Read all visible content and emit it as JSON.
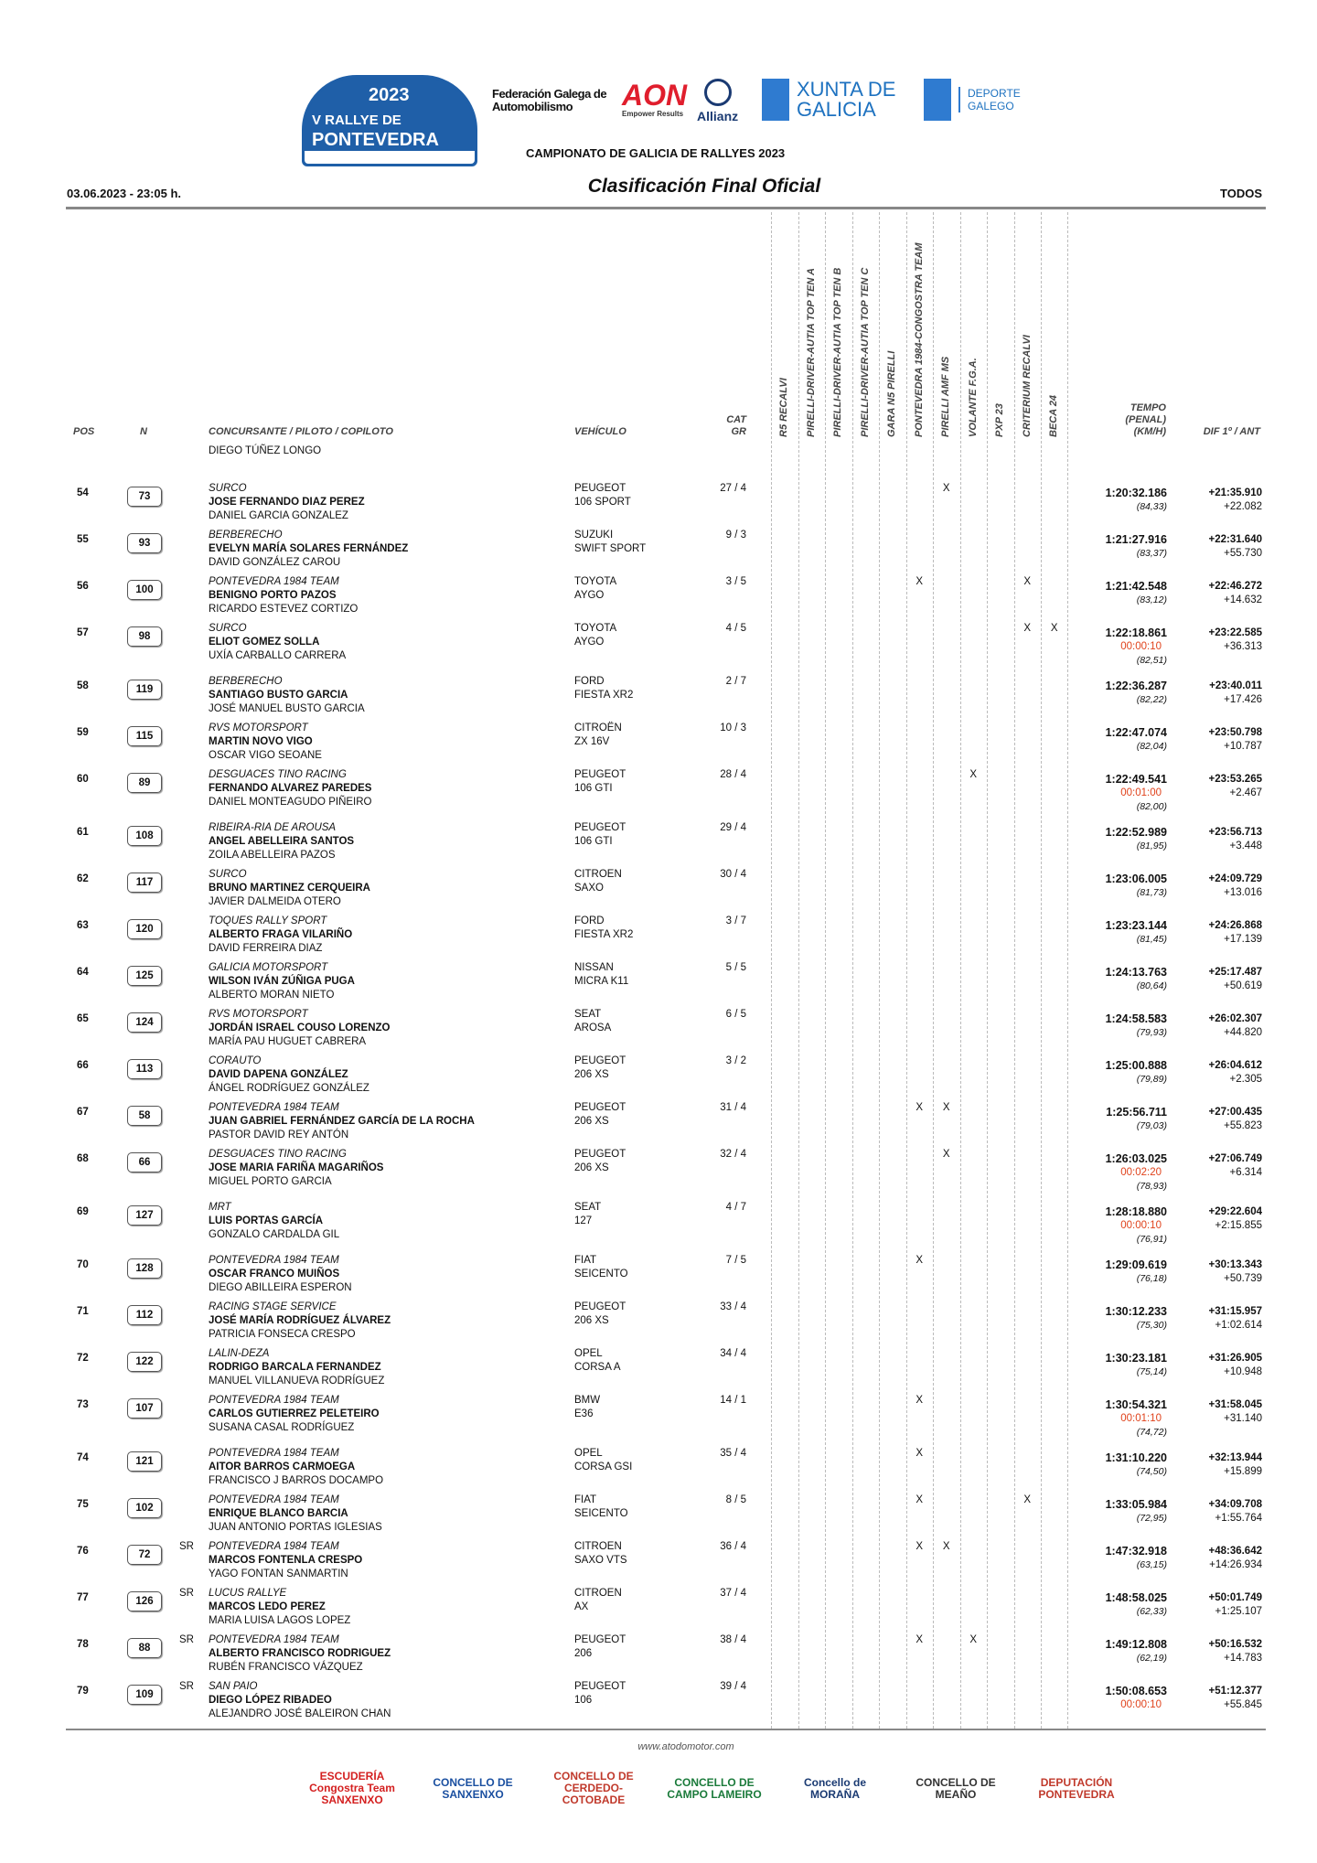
{
  "header": {
    "rally_logo": {
      "year": "2023",
      "line1": "V RALLYE DE",
      "line2": "PONTEVEDRA"
    },
    "sponsors": {
      "fga": "Federación Galega de Automobilismo",
      "aon": "AON",
      "aon_tag": "Empower Results",
      "allianz": "Allianz",
      "xunta": "XUNTA DE GALICIA",
      "deporte": "DEPORTE GALEGO"
    },
    "championship": "CAMPIONATO DE GALICIA DE RALLYES 2023",
    "date": "03.06.2023 - 23:05 h.",
    "title": "Clasificación Final Oficial",
    "filter": "TODOS"
  },
  "columns": {
    "pos": "POS",
    "num": "N",
    "concursante": "CONCURSANTE / PILOTO / COPILOTO",
    "vehiculo": "VEHÍCULO",
    "cat1": "CAT",
    "cat2": "GR",
    "tempo1": "TEMPO",
    "tempo2": "(PENAL)",
    "tempo3": "(KM/H)",
    "dif": "DIF 1º / ANT",
    "trophies": [
      "R5 RECALVI",
      "PIRELLI-DRIVER-AUTIA TOP TEN A",
      "PIRELLI-DRIVER-AUTIA TOP TEN B",
      "PIRELLI-DRIVER-AUTIA TOP TEN C",
      "GARA N5 PIRELLI",
      "PONTEVEDRA 1984-CONGOSTRA TEAM",
      "PIRELLI AMF MS",
      "VOLANTE F.G.A.",
      "PXP 23",
      "CRITERIUM RECALVI",
      "BECA 24"
    ]
  },
  "carryover_copilot": "DIEGO TÚÑEZ LONGO",
  "accent_penalty_color": "#e0421b",
  "rows": [
    {
      "pos": "54",
      "num": "73",
      "sr": "",
      "team": "SURCO",
      "pilot": "JOSE FERNANDO DIAZ PEREZ",
      "copilot": "DANIEL GARCIA GONZALEZ",
      "make": "PEUGEOT",
      "model": "106 SPORT",
      "cat": "27 / 4",
      "marks": [
        6
      ],
      "time": "1:20:32.186",
      "penalty": "",
      "speed": "(84,33)",
      "dif1": "+21:35.910",
      "difant": "+22.082"
    },
    {
      "pos": "55",
      "num": "93",
      "sr": "",
      "team": "BERBERECHO",
      "pilot": "EVELYN MARÍA SOLARES FERNÁNDEZ",
      "copilot": "DAVID GONZÁLEZ CAROU",
      "make": "SUZUKI",
      "model": "SWIFT SPORT",
      "cat": "9 / 3",
      "marks": [],
      "time": "1:21:27.916",
      "penalty": "",
      "speed": "(83,37)",
      "dif1": "+22:31.640",
      "difant": "+55.730"
    },
    {
      "pos": "56",
      "num": "100",
      "sr": "",
      "team": "PONTEVEDRA 1984 TEAM",
      "pilot": "BENIGNO PORTO PAZOS",
      "copilot": "RICARDO ESTEVEZ CORTIZO",
      "make": "TOYOTA",
      "model": "AYGO",
      "cat": "3 / 5",
      "marks": [
        5,
        9
      ],
      "time": "1:21:42.548",
      "penalty": "",
      "speed": "(83,12)",
      "dif1": "+22:46.272",
      "difant": "+14.632"
    },
    {
      "pos": "57",
      "num": "98",
      "sr": "",
      "team": "SURCO",
      "pilot": "ELIOT GOMEZ SOLLA",
      "copilot": "UXÍA CARBALLO CARRERA",
      "make": "TOYOTA",
      "model": "AYGO",
      "cat": "4 / 5",
      "marks": [
        9,
        10
      ],
      "time": "1:22:18.861",
      "penalty": "00:00:10",
      "speed": "(82,51)",
      "dif1": "+23:22.585",
      "difant": "+36.313"
    },
    {
      "pos": "58",
      "num": "119",
      "sr": "",
      "team": "BERBERECHO",
      "pilot": "SANTIAGO BUSTO GARCIA",
      "copilot": "JOSÉ MANUEL BUSTO GARCIA",
      "make": "FORD",
      "model": "FIESTA XR2",
      "cat": "2 / 7",
      "marks": [],
      "time": "1:22:36.287",
      "penalty": "",
      "speed": "(82,22)",
      "dif1": "+23:40.011",
      "difant": "+17.426"
    },
    {
      "pos": "59",
      "num": "115",
      "sr": "",
      "team": "RVS MOTORSPORT",
      "pilot": "MARTIN NOVO VIGO",
      "copilot": "OSCAR VIGO SEOANE",
      "make": "CITROËN",
      "model": "ZX 16V",
      "cat": "10 / 3",
      "marks": [],
      "time": "1:22:47.074",
      "penalty": "",
      "speed": "(82,04)",
      "dif1": "+23:50.798",
      "difant": "+10.787"
    },
    {
      "pos": "60",
      "num": "89",
      "sr": "",
      "team": "DESGUACES TINO RACING",
      "pilot": "FERNANDO ALVAREZ PAREDES",
      "copilot": "DANIEL MONTEAGUDO PIÑEIRO",
      "make": "PEUGEOT",
      "model": "106 GTI",
      "cat": "28 / 4",
      "marks": [
        7
      ],
      "time": "1:22:49.541",
      "penalty": "00:01:00",
      "speed": "(82,00)",
      "dif1": "+23:53.265",
      "difant": "+2.467"
    },
    {
      "pos": "61",
      "num": "108",
      "sr": "",
      "team": "RIBEIRA-RIA DE AROUSA",
      "pilot": "ANGEL ABELLEIRA SANTOS",
      "copilot": "ZOILA ABELLEIRA PAZOS",
      "make": "PEUGEOT",
      "model": "106 GTI",
      "cat": "29 / 4",
      "marks": [],
      "time": "1:22:52.989",
      "penalty": "",
      "speed": "(81,95)",
      "dif1": "+23:56.713",
      "difant": "+3.448"
    },
    {
      "pos": "62",
      "num": "117",
      "sr": "",
      "team": "SURCO",
      "pilot": "BRUNO MARTINEZ CERQUEIRA",
      "copilot": "JAVIER DALMEIDA OTERO",
      "make": "CITROEN",
      "model": "SAXO",
      "cat": "30 / 4",
      "marks": [],
      "time": "1:23:06.005",
      "penalty": "",
      "speed": "(81,73)",
      "dif1": "+24:09.729",
      "difant": "+13.016"
    },
    {
      "pos": "63",
      "num": "120",
      "sr": "",
      "team": "TOQUES RALLY SPORT",
      "pilot": "ALBERTO FRAGA VILARIÑO",
      "copilot": "DAVID FERREIRA DIAZ",
      "make": "FORD",
      "model": "FIESTA XR2",
      "cat": "3 / 7",
      "marks": [],
      "time": "1:23:23.144",
      "penalty": "",
      "speed": "(81,45)",
      "dif1": "+24:26.868",
      "difant": "+17.139"
    },
    {
      "pos": "64",
      "num": "125",
      "sr": "",
      "team": "GALICIA MOTORSPORT",
      "pilot": "WILSON IVÁN ZÚÑIGA PUGA",
      "copilot": "ALBERTO MORAN NIETO",
      "make": "NISSAN",
      "model": "MICRA K11",
      "cat": "5 / 5",
      "marks": [],
      "time": "1:24:13.763",
      "penalty": "",
      "speed": "(80,64)",
      "dif1": "+25:17.487",
      "difant": "+50.619"
    },
    {
      "pos": "65",
      "num": "124",
      "sr": "",
      "team": "RVS MOTORSPORT",
      "pilot": "JORDÁN ISRAEL COUSO LORENZO",
      "copilot": "MARÍA PAU HUGUET CABRERA",
      "make": "SEAT",
      "model": "AROSA",
      "cat": "6 / 5",
      "marks": [],
      "time": "1:24:58.583",
      "penalty": "",
      "speed": "(79,93)",
      "dif1": "+26:02.307",
      "difant": "+44.820"
    },
    {
      "pos": "66",
      "num": "113",
      "sr": "",
      "team": "CORAUTO",
      "pilot": "DAVID DAPENA GONZÁLEZ",
      "copilot": "ÁNGEL RODRÍGUEZ GONZÁLEZ",
      "make": "PEUGEOT",
      "model": "206 XS",
      "cat": "3 / 2",
      "marks": [],
      "time": "1:25:00.888",
      "penalty": "",
      "speed": "(79,89)",
      "dif1": "+26:04.612",
      "difant": "+2.305"
    },
    {
      "pos": "67",
      "num": "58",
      "sr": "",
      "team": "PONTEVEDRA 1984 TEAM",
      "pilot": "JUAN GABRIEL FERNÁNDEZ GARCÍA DE LA ROCHA",
      "copilot": "PASTOR DAVID REY ANTÓN",
      "make": "PEUGEOT",
      "model": "206 XS",
      "cat": "31 / 4",
      "marks": [
        5,
        6
      ],
      "time": "1:25:56.711",
      "penalty": "",
      "speed": "(79,03)",
      "dif1": "+27:00.435",
      "difant": "+55.823"
    },
    {
      "pos": "68",
      "num": "66",
      "sr": "",
      "team": "DESGUACES TINO RACING",
      "pilot": "JOSE MARIA FARIÑA MAGARIÑOS",
      "copilot": "MIGUEL PORTO GARCIA",
      "make": "PEUGEOT",
      "model": "206 XS",
      "cat": "32 / 4",
      "marks": [
        6
      ],
      "time": "1:26:03.025",
      "penalty": "00:02:20",
      "speed": "(78,93)",
      "dif1": "+27:06.749",
      "difant": "+6.314"
    },
    {
      "pos": "69",
      "num": "127",
      "sr": "",
      "team": "MRT",
      "pilot": "LUIS PORTAS GARCÍA",
      "copilot": "GONZALO CARDALDA GIL",
      "make": "SEAT",
      "model": "127",
      "cat": "4 / 7",
      "marks": [],
      "time": "1:28:18.880",
      "penalty": "00:00:10",
      "speed": "(76,91)",
      "dif1": "+29:22.604",
      "difant": "+2:15.855"
    },
    {
      "pos": "70",
      "num": "128",
      "sr": "",
      "team": "PONTEVEDRA 1984 TEAM",
      "pilot": "OSCAR FRANCO MUIÑOS",
      "copilot": "DIEGO ABILLEIRA ESPERON",
      "make": "FIAT",
      "model": "SEICENTO",
      "cat": "7 / 5",
      "marks": [
        5
      ],
      "time": "1:29:09.619",
      "penalty": "",
      "speed": "(76,18)",
      "dif1": "+30:13.343",
      "difant": "+50.739"
    },
    {
      "pos": "71",
      "num": "112",
      "sr": "",
      "team": "RACING STAGE SERVICE",
      "pilot": "JOSÉ MARÍA RODRÍGUEZ ÁLVAREZ",
      "copilot": "PATRICIA FONSECA CRESPO",
      "make": "PEUGEOT",
      "model": "206 XS",
      "cat": "33 / 4",
      "marks": [],
      "time": "1:30:12.233",
      "penalty": "",
      "speed": "(75,30)",
      "dif1": "+31:15.957",
      "difant": "+1:02.614"
    },
    {
      "pos": "72",
      "num": "122",
      "sr": "",
      "team": "LALIN-DEZA",
      "pilot": "RODRIGO BARCALA FERNANDEZ",
      "copilot": "MANUEL VILLANUEVA RODRÍGUEZ",
      "make": "OPEL",
      "model": "CORSA A",
      "cat": "34 / 4",
      "marks": [],
      "time": "1:30:23.181",
      "penalty": "",
      "speed": "(75,14)",
      "dif1": "+31:26.905",
      "difant": "+10.948"
    },
    {
      "pos": "73",
      "num": "107",
      "sr": "",
      "team": "PONTEVEDRA 1984 TEAM",
      "pilot": "CARLOS GUTIERREZ PELETEIRO",
      "copilot": "SUSANA CASAL RODRÍGUEZ",
      "make": "BMW",
      "model": "E36",
      "cat": "14 / 1",
      "marks": [
        5
      ],
      "time": "1:30:54.321",
      "penalty": "00:01:10",
      "speed": "(74,72)",
      "dif1": "+31:58.045",
      "difant": "+31.140"
    },
    {
      "pos": "74",
      "num": "121",
      "sr": "",
      "team": "PONTEVEDRA 1984 TEAM",
      "pilot": "AITOR BARROS CARMOEGA",
      "copilot": "FRANCISCO J BARROS DOCAMPO",
      "make": "OPEL",
      "model": "CORSA GSI",
      "cat": "35 / 4",
      "marks": [
        5
      ],
      "time": "1:31:10.220",
      "penalty": "",
      "speed": "(74,50)",
      "dif1": "+32:13.944",
      "difant": "+15.899"
    },
    {
      "pos": "75",
      "num": "102",
      "sr": "",
      "team": "PONTEVEDRA 1984 TEAM",
      "pilot": "ENRIQUE BLANCO BARCIA",
      "copilot": "JUAN ANTONIO PORTAS IGLESIAS",
      "make": "FIAT",
      "model": "SEICENTO",
      "cat": "8 / 5",
      "marks": [
        5,
        9
      ],
      "time": "1:33:05.984",
      "penalty": "",
      "speed": "(72,95)",
      "dif1": "+34:09.708",
      "difant": "+1:55.764"
    },
    {
      "pos": "76",
      "num": "72",
      "sr": "SR",
      "team": "PONTEVEDRA 1984 TEAM",
      "pilot": "MARCOS FONTENLA CRESPO",
      "copilot": "YAGO FONTAN SANMARTIN",
      "make": "CITROEN",
      "model": "SAXO VTS",
      "cat": "36 / 4",
      "marks": [
        5,
        6
      ],
      "time": "1:47:32.918",
      "penalty": "",
      "speed": "(63,15)",
      "dif1": "+48:36.642",
      "difant": "+14:26.934"
    },
    {
      "pos": "77",
      "num": "126",
      "sr": "SR",
      "team": "LUCUS RALLYE",
      "pilot": "MARCOS LEDO PEREZ",
      "copilot": "MARIA LUISA LAGOS LOPEZ",
      "make": "CITROEN",
      "model": "AX",
      "cat": "37 / 4",
      "marks": [],
      "time": "1:48:58.025",
      "penalty": "",
      "speed": "(62,33)",
      "dif1": "+50:01.749",
      "difant": "+1:25.107"
    },
    {
      "pos": "78",
      "num": "88",
      "sr": "SR",
      "team": "PONTEVEDRA 1984 TEAM",
      "pilot": "ALBERTO FRANCISCO RODRIGUEZ",
      "copilot": "RUBÉN FRANCISCO VÁZQUEZ",
      "make": "PEUGEOT",
      "model": "206",
      "cat": "38 / 4",
      "marks": [
        5,
        7
      ],
      "time": "1:49:12.808",
      "penalty": "",
      "speed": "(62,19)",
      "dif1": "+50:16.532",
      "difant": "+14.783"
    },
    {
      "pos": "79",
      "num": "109",
      "sr": "SR",
      "team": "SAN PAIO",
      "pilot": "DIEGO LÓPEZ RIBADEO",
      "copilot": "ALEJANDRO JOSÉ BALEIRON CHAN",
      "make": "PEUGEOT",
      "model": "106",
      "cat": "39 / 4",
      "marks": [],
      "time": "1:50:08.653",
      "penalty": "00:00:10",
      "speed": "",
      "dif1": "+51:12.377",
      "difant": "+55.845"
    }
  ],
  "footer": {
    "website": "www.atodomotor.com",
    "logos": [
      "ESCUDERÍA Congostra Team SANXENXO",
      "CONCELLO DE SANXENXO",
      "CONCELLO DE CERDEDO-COTOBADE",
      "CONCELLO DE CAMPO LAMEIRO",
      "Concello de MORAÑA",
      "CONCELLO DE MEAÑO",
      "DEPUTACIÓN PONTEVEDRA"
    ]
  }
}
